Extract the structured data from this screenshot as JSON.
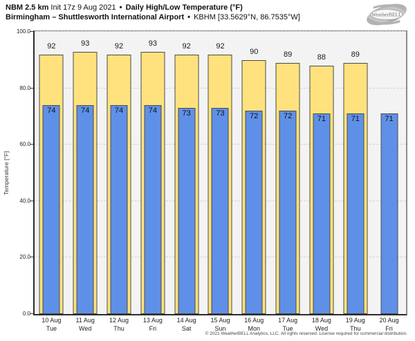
{
  "header": {
    "model": "NBM 2.5 km",
    "init": "Init 17z 9 Aug 2021",
    "bullet": "•",
    "product": "Daily High/Low Temperature (°F)",
    "location": "Birmingham – Shuttlesworth International Airport",
    "station": "KBHM [33.5629°N, 86.7535°W]"
  },
  "logo": {
    "brand": "WeatherBELL",
    "sub": "Analytics LLC"
  },
  "chart_data": {
    "type": "bar",
    "title": "Daily High/Low Temperature (°F)",
    "ylabel": "Temperature [°F]",
    "ylim": [
      0,
      100
    ],
    "yticks": [
      {
        "value": 0,
        "label": "0.0"
      },
      {
        "value": 20,
        "label": "20.0"
      },
      {
        "value": 40,
        "label": "40.0"
      },
      {
        "value": 60,
        "label": "60.0"
      },
      {
        "value": 80,
        "label": "80.0"
      },
      {
        "value": 100,
        "label": "100.0"
      }
    ],
    "grid": "horizontal-dashed",
    "legend_position": "none",
    "categories": [
      {
        "date": "10 Aug",
        "day": "Tue"
      },
      {
        "date": "11 Aug",
        "day": "Wed"
      },
      {
        "date": "12 Aug",
        "day": "Thu"
      },
      {
        "date": "13 Aug",
        "day": "Fri"
      },
      {
        "date": "14 Aug",
        "day": "Sat"
      },
      {
        "date": "15 Aug",
        "day": "Sun"
      },
      {
        "date": "16 Aug",
        "day": "Mon"
      },
      {
        "date": "17 Aug",
        "day": "Tue"
      },
      {
        "date": "18 Aug",
        "day": "Wed"
      },
      {
        "date": "19 Aug",
        "day": "Thu"
      },
      {
        "date": "20 Aug",
        "day": "Fri"
      }
    ],
    "series": [
      {
        "name": "Daily High",
        "color": "#ffe27d",
        "values": [
          92,
          93,
          92,
          93,
          92,
          92,
          90,
          89,
          88,
          89,
          null
        ]
      },
      {
        "name": "Daily Low",
        "color": "#5f90e8",
        "values": [
          74,
          74,
          74,
          74,
          73,
          73,
          72,
          72,
          71,
          71,
          71
        ]
      }
    ]
  },
  "footer": {
    "copyright": "© 2021 WeatherBELL Analytics, LLC. All rights reserved. License required for commercial distribution."
  },
  "colors": {
    "high_bar": "#ffe27d",
    "low_bar": "#5f90e8",
    "bar_border": "#4a4a4a",
    "plot_bg": "#f3f3f3",
    "gridline": "#d2d2d2"
  }
}
